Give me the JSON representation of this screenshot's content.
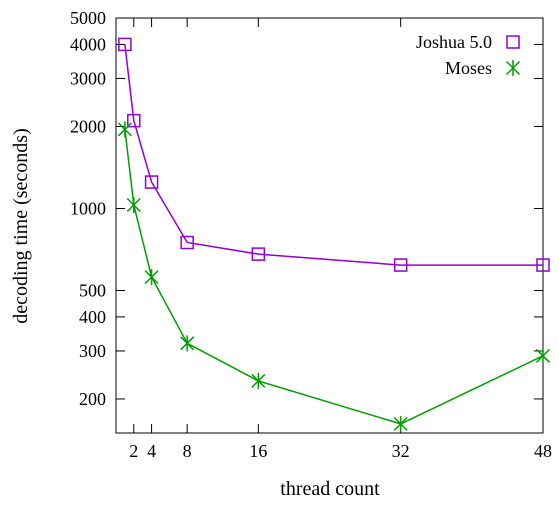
{
  "chart_data": {
    "type": "line",
    "title": "",
    "xlabel": "thread count",
    "ylabel": "decoding time (seconds)",
    "x_scale": "linear",
    "y_scale": "log",
    "xlim": [
      0,
      48
    ],
    "ylim": [
      150,
      5000
    ],
    "x_ticks": [
      2,
      4,
      8,
      16,
      32,
      48
    ],
    "x_tick_labels": [
      "2",
      "4",
      "8",
      "16",
      "32",
      "48"
    ],
    "y_ticks": [
      200,
      300,
      400,
      500,
      1000,
      2000,
      3000,
      4000,
      5000
    ],
    "y_tick_labels": [
      "200",
      "300",
      "400",
      "500",
      "1000",
      "2000",
      "3000",
      "4000",
      "5000"
    ],
    "grid": false,
    "legend_position": "top-right",
    "series": [
      {
        "name": "Joshua 5.0",
        "color": "#9400d3",
        "marker": "square",
        "x": [
          1,
          2,
          4,
          8,
          16,
          32,
          48
        ],
        "y": [
          4000,
          2100,
          1250,
          750,
          680,
          620,
          620
        ]
      },
      {
        "name": "Moses",
        "color": "#009e00",
        "marker": "cross",
        "x": [
          1,
          2,
          4,
          8,
          16,
          32,
          48
        ],
        "y": [
          1950,
          1030,
          560,
          320,
          233,
          162,
          288
        ]
      }
    ]
  }
}
